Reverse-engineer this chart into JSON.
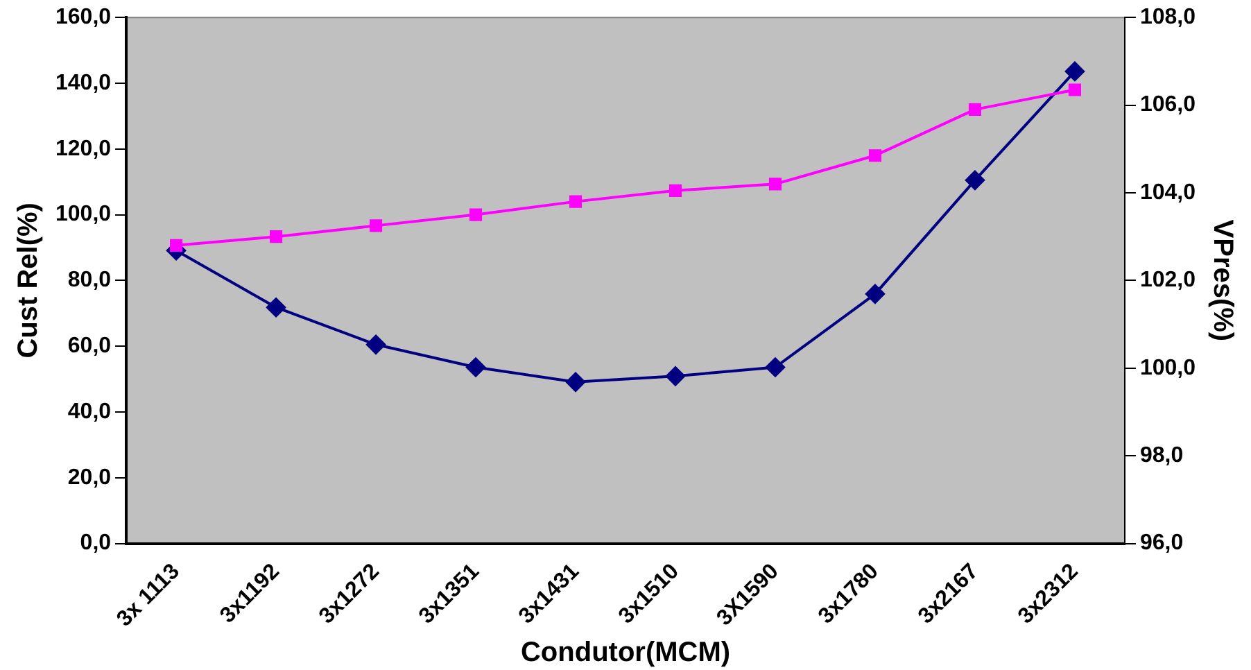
{
  "chart_data": {
    "type": "line",
    "xlabel": "Condutor(MCM)",
    "ylabel": "Cust Rel(%)",
    "y2label": "VPres(%)",
    "categories": [
      "3x 1113",
      "3x1192",
      "3x1272",
      "3x1351",
      "3x1431",
      "3x1510",
      "3X1590",
      "3x1780",
      "3x2167",
      "3x2312"
    ],
    "series": [
      {
        "color": "#000080",
        "marker": "diamond",
        "values": [
          89.1,
          71.8,
          60.5,
          53.6,
          49.1,
          50.9,
          53.6,
          75.9,
          110.5,
          143.6
        ]
      },
      {
        "color": "#ff00ff",
        "marker": "square",
        "axis": "y2",
        "values": [
          102.8,
          103.0,
          103.25,
          103.5,
          103.8,
          104.05,
          104.2,
          104.85,
          105.9,
          106.35
        ]
      }
    ],
    "ylim": [
      0,
      160
    ],
    "yticks": [
      {
        "value": 0,
        "label": "0,0"
      },
      {
        "value": 20,
        "label": "20,0"
      },
      {
        "value": 40,
        "label": "40,0"
      },
      {
        "value": 60,
        "label": "60,0"
      },
      {
        "value": 80,
        "label": "80,0"
      },
      {
        "value": 100,
        "label": "100,0"
      },
      {
        "value": 120,
        "label": "120,0"
      },
      {
        "value": 140,
        "label": "140,0"
      },
      {
        "value": 160,
        "label": "160,0"
      }
    ],
    "y2lim": [
      96,
      108
    ],
    "y2ticks": [
      {
        "value": 96,
        "label": "96,0"
      },
      {
        "value": 98,
        "label": "98,0"
      },
      {
        "value": 100,
        "label": "100,0"
      },
      {
        "value": 102,
        "label": "102,0"
      },
      {
        "value": 104,
        "label": "104,0"
      },
      {
        "value": 106,
        "label": "106,0"
      },
      {
        "value": 108,
        "label": "108,0"
      }
    ],
    "grid": false,
    "legend": false,
    "line_style": "solid"
  }
}
